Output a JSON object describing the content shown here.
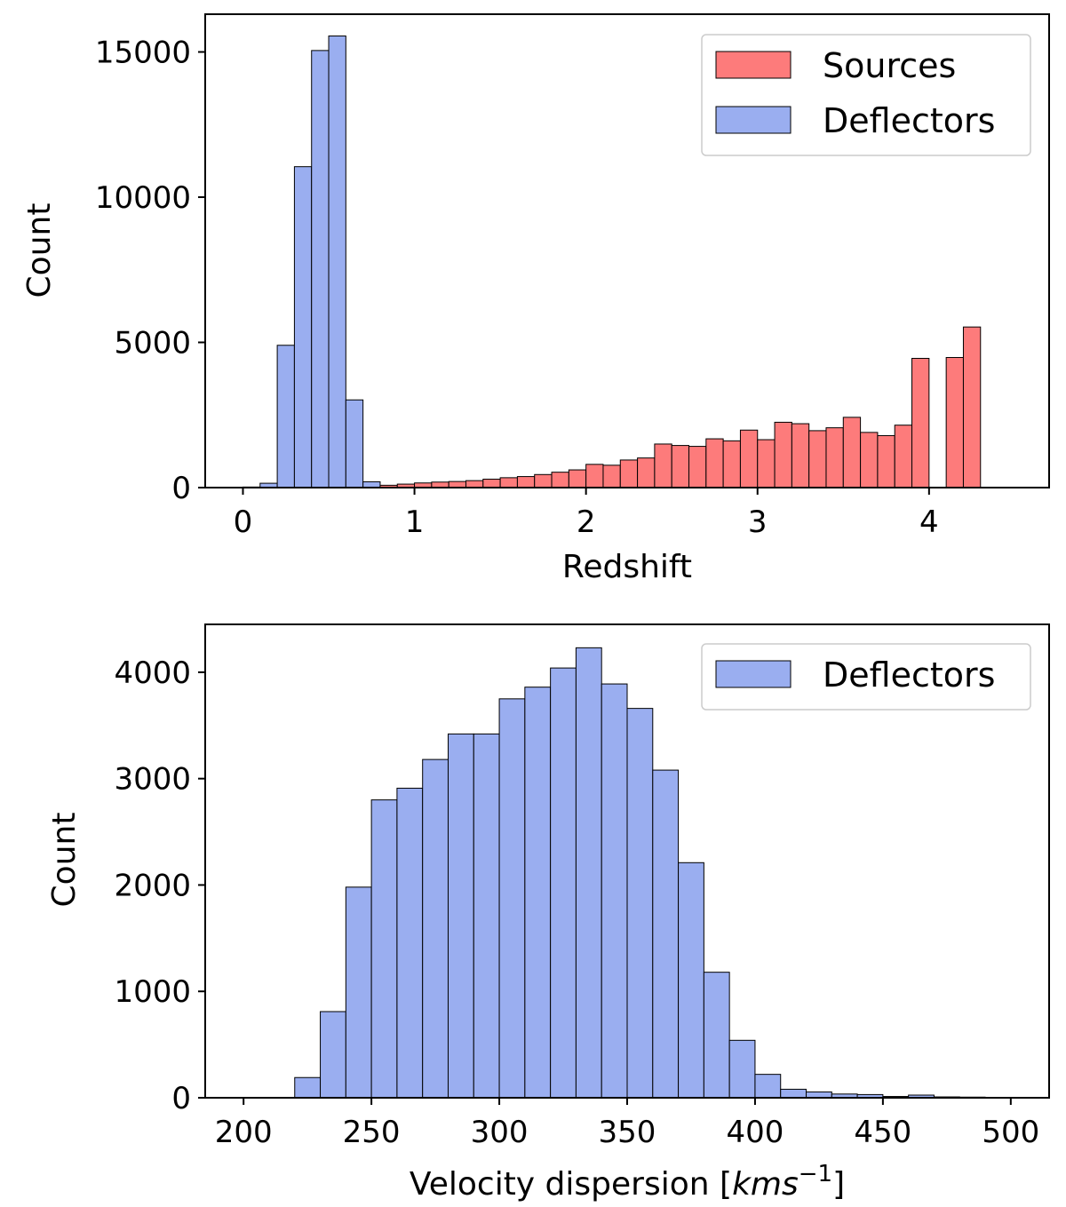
{
  "chart_data": [
    {
      "type": "bar",
      "subtype": "histogram",
      "xlabel": "Redshift",
      "ylabel": "Count",
      "xlim": [
        -0.22,
        4.7
      ],
      "ylim": [
        0,
        16300
      ],
      "xticks": [
        0,
        1,
        2,
        3,
        4
      ],
      "yticks": [
        0,
        5000,
        10000,
        15000
      ],
      "legend": {
        "position": "top-right",
        "entries": [
          "Sources",
          "Deflectors"
        ]
      },
      "series": [
        {
          "name": "Deflectors",
          "color": "#9aaef0",
          "bin_width": 0.1,
          "bin_starts": [
            0.0,
            0.1,
            0.2,
            0.3,
            0.4,
            0.5,
            0.6,
            0.7,
            0.8
          ],
          "values": [
            20,
            150,
            4900,
            11050,
            15050,
            15550,
            3020,
            200,
            40
          ]
        },
        {
          "name": "Sources",
          "color": "#fd7b7b",
          "bin_width": 0.1,
          "bin_starts": [
            0.8,
            0.9,
            1.0,
            1.1,
            1.2,
            1.3,
            1.4,
            1.5,
            1.6,
            1.7,
            1.8,
            1.9,
            2.0,
            2.1,
            2.2,
            2.3,
            2.4,
            2.5,
            2.6,
            2.7,
            2.8,
            2.9,
            3.0,
            3.1,
            3.2,
            3.3,
            3.4,
            3.5,
            3.6,
            3.7,
            3.8,
            3.9,
            4.0,
            4.1,
            4.2
          ],
          "values": [
            80,
            120,
            160,
            190,
            210,
            240,
            290,
            340,
            380,
            450,
            530,
            610,
            800,
            770,
            950,
            1020,
            1500,
            1450,
            1420,
            1680,
            1610,
            1980,
            1650,
            2250,
            2200,
            1960,
            2060,
            2420,
            1900,
            1790,
            2150,
            4450,
            0,
            4480,
            5530
          ]
        }
      ]
    },
    {
      "type": "bar",
      "subtype": "histogram",
      "xlabel": "Velocity dispersion [kms⁻¹]",
      "ylabel": "Count",
      "xlim": [
        185,
        515
      ],
      "ylim": [
        0,
        4450
      ],
      "xticks": [
        200,
        250,
        300,
        350,
        400,
        450,
        500
      ],
      "yticks": [
        0,
        1000,
        2000,
        3000,
        4000
      ],
      "legend": {
        "position": "top-right",
        "entries": [
          "Deflectors"
        ]
      },
      "series": [
        {
          "name": "Deflectors",
          "color": "#9aaef0",
          "bin_width": 10,
          "bin_starts": [
            200,
            210,
            220,
            230,
            240,
            250,
            260,
            270,
            280,
            290,
            300,
            310,
            320,
            330,
            340,
            350,
            360,
            370,
            380,
            390,
            400,
            410,
            420,
            430,
            440,
            450,
            460,
            470,
            480,
            490
          ],
          "values": [
            2,
            4,
            190,
            810,
            1980,
            2800,
            2910,
            3180,
            3420,
            3420,
            3750,
            3860,
            4040,
            4230,
            3890,
            3660,
            3080,
            2210,
            1180,
            540,
            220,
            80,
            55,
            35,
            30,
            12,
            25,
            8,
            6,
            4
          ]
        }
      ]
    }
  ]
}
